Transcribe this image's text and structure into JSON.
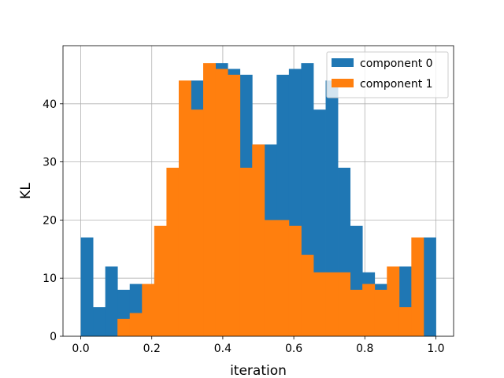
{
  "chart_data": {
    "type": "bar",
    "title": "",
    "xlabel": "iteration",
    "ylabel": "KL",
    "xlim": [
      -0.05,
      1.05
    ],
    "ylim": [
      0,
      50
    ],
    "xticks": [
      0.0,
      0.2,
      0.4,
      0.6,
      0.8,
      1.0
    ],
    "xtick_labels": [
      "0.0",
      "0.2",
      "0.4",
      "0.6",
      "0.8",
      "1.0"
    ],
    "yticks": [
      0,
      10,
      20,
      30,
      40
    ],
    "ytick_labels": [
      "0",
      "10",
      "20",
      "30",
      "40"
    ],
    "grid": true,
    "legend_position": "top-right",
    "bin_edges": [
      0.0,
      0.0345,
      0.069,
      0.1034,
      0.1379,
      0.1724,
      0.2069,
      0.2414,
      0.2759,
      0.3103,
      0.3448,
      0.3793,
      0.4138,
      0.4483,
      0.4828,
      0.5172,
      0.5517,
      0.5862,
      0.6207,
      0.6552,
      0.6897,
      0.7241,
      0.7586,
      0.7931,
      0.8276,
      0.8621,
      0.8966,
      0.931,
      0.9655,
      1.0
    ],
    "series": [
      {
        "name": "component 0",
        "color": "#1f77b4",
        "values": [
          17,
          5,
          12,
          8,
          9,
          8,
          11,
          19,
          29,
          44,
          39,
          47,
          46,
          45,
          33,
          33,
          45,
          46,
          47,
          39,
          44,
          29,
          19,
          11,
          9,
          8,
          12,
          5,
          17
        ]
      },
      {
        "name": "component 1",
        "color": "#ff7f0e",
        "values": [
          0,
          0,
          0,
          3,
          4,
          9,
          19,
          29,
          44,
          39,
          47,
          46,
          45,
          29,
          33,
          20,
          20,
          19,
          14,
          11,
          11,
          11,
          8,
          9,
          8,
          12,
          5,
          17,
          0
        ]
      }
    ]
  }
}
